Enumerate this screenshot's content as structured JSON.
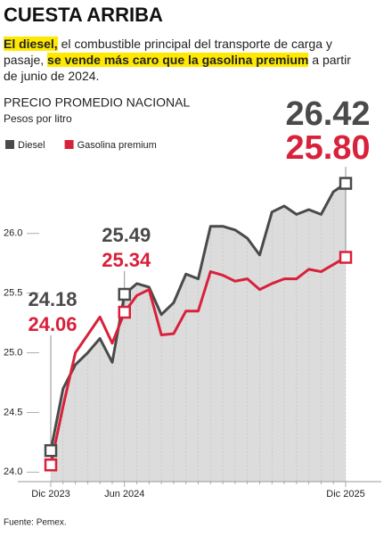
{
  "chart_data": {
    "type": "line",
    "title": "CUESTA ARRIBA",
    "subtitle": [
      "El diesel,",
      " el combustible principal del transporte de carga y pasaje, ",
      "se vende más caro que la gasolina premium",
      " a partir de junio de 2024."
    ],
    "y_label": "PRECIO PROMEDIO NACIONAL",
    "y_unit": "Pesos por litro",
    "source": "Fuente: Pemex.",
    "categories": [
      "Dic 2023",
      null,
      null,
      null,
      null,
      null,
      "Jun 2024",
      null,
      null,
      null,
      null,
      null,
      null,
      null,
      null,
      null,
      null,
      null,
      null,
      null,
      null,
      null,
      null,
      null,
      "Dic 2025"
    ],
    "series": [
      {
        "name": "Diesel",
        "color": "#4a4a4a",
        "values": [
          24.18,
          24.7,
          24.9,
          25.0,
          25.12,
          24.92,
          25.49,
          25.58,
          25.55,
          25.32,
          25.42,
          25.66,
          25.62,
          26.06,
          26.06,
          26.03,
          25.96,
          25.82,
          26.18,
          26.23,
          26.16,
          26.2,
          26.16,
          26.35,
          26.42
        ],
        "value_labels": [
          "24.18",
          null,
          null,
          null,
          null,
          null,
          "25.49",
          null,
          null,
          null,
          null,
          null,
          null,
          null,
          null,
          null,
          null,
          null,
          null,
          null,
          null,
          null,
          null,
          null,
          "26.42"
        ]
      },
      {
        "name": "Gasolina premium",
        "color": "#d8213a",
        "values": [
          24.06,
          24.55,
          25.0,
          25.15,
          25.3,
          25.08,
          25.34,
          25.48,
          25.53,
          25.15,
          25.16,
          25.35,
          25.35,
          25.68,
          25.65,
          25.6,
          25.62,
          25.53,
          25.58,
          25.62,
          25.62,
          25.7,
          25.68,
          25.74,
          25.8
        ],
        "value_labels": [
          "24.06",
          null,
          null,
          null,
          null,
          null,
          "25.34",
          null,
          null,
          null,
          null,
          null,
          null,
          null,
          null,
          null,
          null,
          null,
          null,
          null,
          null,
          null,
          null,
          null,
          "25.80"
        ]
      }
    ],
    "ylim": [
      23.92,
      27.0
    ],
    "yticks": [
      {
        "value": 24,
        "label": "24.0"
      },
      24.5,
      {
        "value": 25,
        "label": "25.0"
      },
      25.5,
      {
        "value": 26,
        "label": "26.0"
      }
    ],
    "grid": false,
    "area_fill": "#dcdcdc"
  }
}
